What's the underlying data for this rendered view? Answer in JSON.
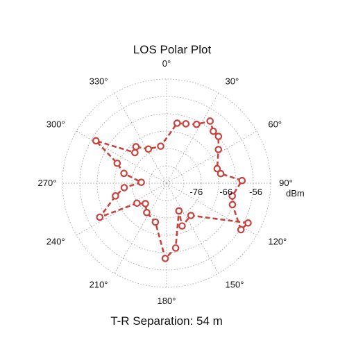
{
  "chart_data": {
    "type": "polar-line",
    "title": "LOS Polar Plot",
    "subtitle": "T-R Separation: 54 m",
    "radial_unit": "dBm",
    "angle_unit": "deg",
    "angle_zero": "top",
    "angle_direction": "clockwise",
    "angle_ticks": [
      0,
      30,
      60,
      90,
      120,
      150,
      180,
      210,
      240,
      270,
      300,
      330
    ],
    "angle_tick_labels": [
      "0°",
      "30°",
      "60°",
      "90°",
      "120°",
      "150°",
      "180°",
      "210°",
      "240°",
      "270°",
      "300°",
      "330°"
    ],
    "radial_ticks": [
      -76,
      -66,
      -56
    ],
    "radial_tick_labels": [
      "-76",
      "-66",
      "-56"
    ],
    "radial_range": [
      -86,
      -51
    ],
    "grid": true,
    "series": [
      {
        "color": "#c8433d",
        "line_style": "dashed",
        "marker": "circle",
        "points": [
          {
            "angle": 10,
            "value": -65.5
          },
          {
            "angle": 18,
            "value": -65.0
          },
          {
            "angle": 27,
            "value": -63.8
          },
          {
            "angle": 35,
            "value": -60.5
          },
          {
            "angle": 42,
            "value": -62.5
          },
          {
            "angle": 48,
            "value": -62.5
          },
          {
            "angle": 57,
            "value": -65.2
          },
          {
            "angle": 74,
            "value": -68.3
          },
          {
            "angle": 80,
            "value": -67.5
          },
          {
            "angle": 88,
            "value": -60.6
          },
          {
            "angle": 101,
            "value": -63.5
          },
          {
            "angle": 108,
            "value": -62.7
          },
          {
            "angle": 122,
            "value": -56.5
          },
          {
            "angle": 116,
            "value": -55.5
          },
          {
            "angle": 143,
            "value": -72.4
          },
          {
            "angle": 160,
            "value": -70.7
          },
          {
            "angle": 156,
            "value": -75.8
          },
          {
            "angle": 172,
            "value": -64.0
          },
          {
            "angle": 181,
            "value": -60.7
          },
          {
            "angle": 196,
            "value": -72.4
          },
          {
            "angle": 214,
            "value": -74.1
          },
          {
            "angle": 226,
            "value": -76.1
          },
          {
            "angle": 236,
            "value": -74.0
          },
          {
            "angle": 243,
            "value": -60.8
          },
          {
            "angle": 256,
            "value": -68.3
          },
          {
            "angle": 264,
            "value": -71.7
          },
          {
            "angle": 272,
            "value": -77.5
          },
          {
            "angle": 283,
            "value": -71.3
          },
          {
            "angle": 292,
            "value": -68.1
          },
          {
            "angle": 301,
            "value": -58.3
          },
          {
            "angle": 314,
            "value": -71.2
          },
          {
            "angle": 320,
            "value": -70.0
          },
          {
            "angle": 332,
            "value": -73.0
          },
          {
            "angle": 351,
            "value": -73.4
          },
          {
            "angle": 10,
            "value": -65.5
          }
        ]
      }
    ]
  }
}
